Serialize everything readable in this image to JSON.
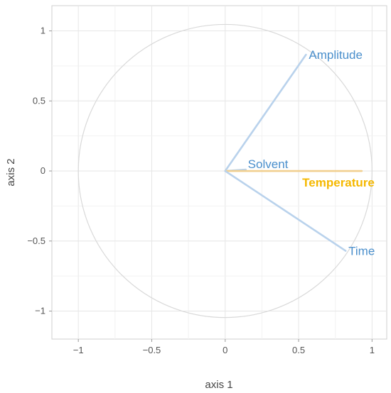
{
  "chart_data": {
    "type": "correlation-circle",
    "xlabel": "axis 1",
    "ylabel": "axis 2",
    "xlim": [
      -1.18,
      1.1
    ],
    "ylim": [
      -1.2,
      1.18
    ],
    "xticks": [
      -1,
      -0.5,
      0,
      0.5,
      1
    ],
    "yticks": [
      -1,
      -0.5,
      0,
      0.5,
      1
    ],
    "xtick_labels": [
      "−1",
      "−0.5",
      "0",
      "0.5",
      "1"
    ],
    "ytick_labels": [
      "−1",
      "−0.5",
      "0",
      "0.5",
      "1"
    ],
    "grid": true,
    "unit_circle": true,
    "variables": [
      {
        "name": "Amplitude",
        "x": 0.55,
        "y": 0.83,
        "color": "#4a8fcc",
        "line_color": "#b9d2ec",
        "bold": false
      },
      {
        "name": "Solvent",
        "x": 0.14,
        "y": 0.01,
        "color": "#4a8fcc",
        "line_color": "#b9d2ec",
        "bold": false
      },
      {
        "name": "Temperature",
        "x": 0.93,
        "y": 0.0,
        "color": "#f5b800",
        "line_color": "#f1cf8f",
        "bold": true
      },
      {
        "name": "Time",
        "x": 0.82,
        "y": -0.57,
        "color": "#4a8fcc",
        "line_color": "#b9d2ec",
        "bold": false
      }
    ]
  }
}
